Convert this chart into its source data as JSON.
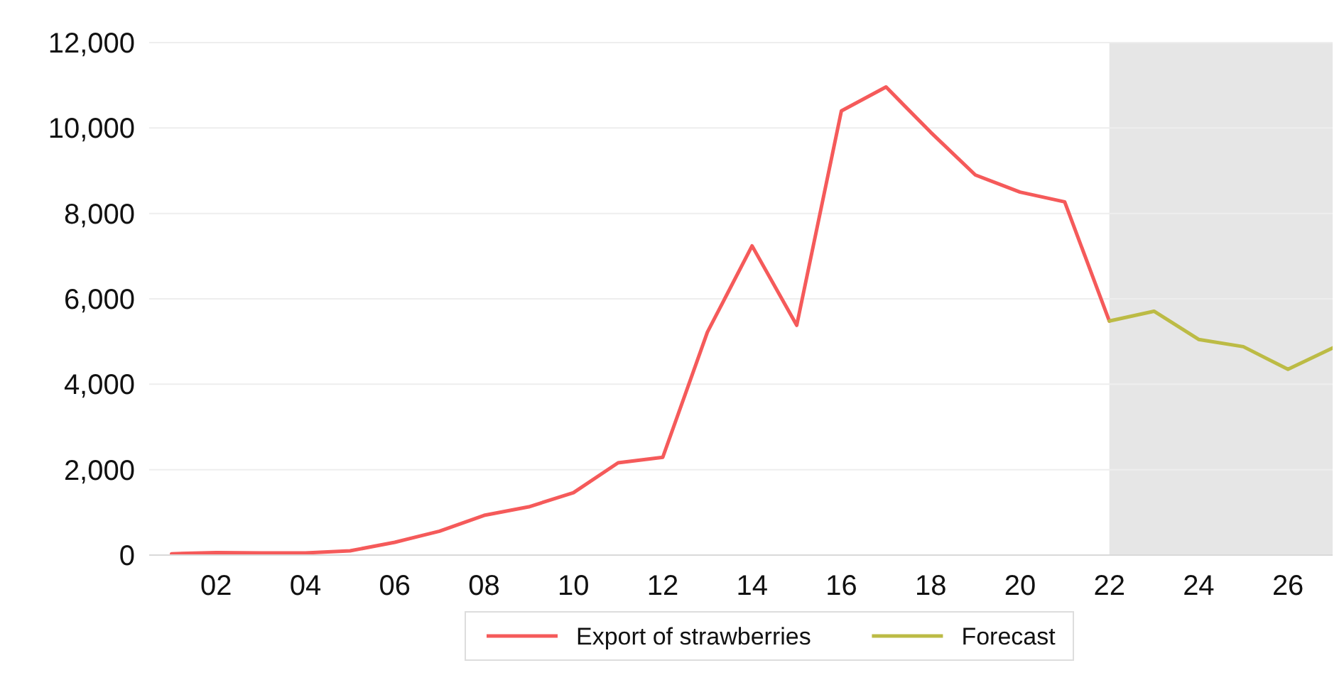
{
  "chart_data": {
    "type": "line",
    "xlim": [
      2000.5,
      2027
    ],
    "xticks": [
      {
        "value": 2002,
        "label": "02"
      },
      {
        "value": 2004,
        "label": "04"
      },
      {
        "value": 2006,
        "label": "06"
      },
      {
        "value": 2008,
        "label": "08"
      },
      {
        "value": 2010,
        "label": "10"
      },
      {
        "value": 2012,
        "label": "12"
      },
      {
        "value": 2014,
        "label": "14"
      },
      {
        "value": 2016,
        "label": "16"
      },
      {
        "value": 2018,
        "label": "18"
      },
      {
        "value": 2020,
        "label": "20"
      },
      {
        "value": 2022,
        "label": "22"
      },
      {
        "value": 2024,
        "label": "24"
      },
      {
        "value": 2026,
        "label": "26"
      }
    ],
    "ylim": [
      0,
      12000
    ],
    "yticks": [
      {
        "value": 0,
        "label": "0"
      },
      {
        "value": 2000,
        "label": "2,000"
      },
      {
        "value": 4000,
        "label": "4,000"
      },
      {
        "value": 6000,
        "label": "6,000"
      },
      {
        "value": 8000,
        "label": "8,000"
      },
      {
        "value": 10000,
        "label": "10,000"
      },
      {
        "value": 12000,
        "label": "12,000"
      }
    ],
    "grid": "y",
    "legend": "bottom",
    "marker": "none",
    "line_style": "solid",
    "bands": [
      {
        "axis": "x",
        "from": 2022,
        "to": 2027,
        "color": "#e6e6e6"
      }
    ],
    "series": [
      {
        "name": "Export of strawberries",
        "color": "#f55a5a",
        "x": [
          2001,
          2002,
          2003,
          2004,
          2005,
          2006,
          2007,
          2008,
          2009,
          2010,
          2011,
          2012,
          2013,
          2014,
          2015,
          2016,
          2017,
          2018,
          2019,
          2020,
          2021,
          2022
        ],
        "values": [
          30,
          60,
          50,
          50,
          100,
          300,
          560,
          930,
          1130,
          1460,
          2160,
          2290,
          5220,
          7240,
          5380,
          10400,
          10960,
          9900,
          8900,
          8500,
          8270,
          5480
        ]
      },
      {
        "name": "Forecast",
        "color": "#bcbb45",
        "x": [
          2022,
          2023,
          2024,
          2025,
          2026,
          2027
        ],
        "values": [
          5480,
          5710,
          5050,
          4880,
          4350,
          4850
        ]
      }
    ]
  }
}
